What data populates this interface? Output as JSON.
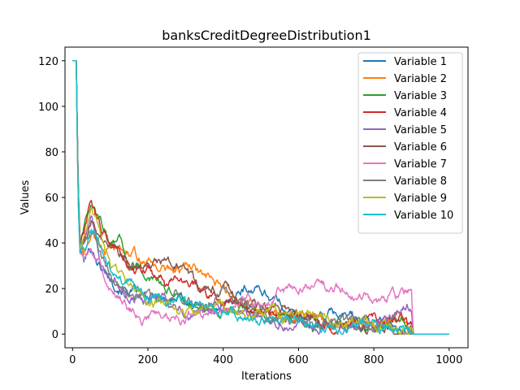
{
  "chart_data": {
    "type": "line",
    "title": "banksCreditDegreeDistribution1",
    "xlabel": "Iterations",
    "ylabel": "Values",
    "xlim": [
      -20,
      1050
    ],
    "ylim": [
      -6,
      126
    ],
    "xticks": [
      0,
      200,
      400,
      600,
      800,
      1000
    ],
    "yticks": [
      0,
      20,
      40,
      60,
      80,
      100,
      120
    ],
    "grid": false,
    "legend_position": "top-right",
    "series": [
      {
        "name": "Variable 1",
        "color": "#1f77b4",
        "x": [
          0,
          10,
          15,
          20,
          30,
          50,
          75,
          100,
          150,
          200,
          250,
          300,
          350,
          400,
          450,
          500,
          550,
          600,
          650,
          700,
          750,
          800,
          850,
          880,
          900,
          905,
          950,
          1000
        ],
        "y": [
          120,
          120,
          60,
          38,
          32,
          38,
          30,
          25,
          20,
          14,
          16,
          15,
          12,
          10,
          21,
          20,
          14,
          7,
          8,
          9,
          7,
          6,
          4,
          4,
          3,
          0,
          0,
          0
        ]
      },
      {
        "name": "Variable 2",
        "color": "#ff7f0e",
        "x": [
          0,
          10,
          15,
          20,
          30,
          50,
          75,
          100,
          150,
          200,
          250,
          300,
          350,
          400,
          450,
          500,
          550,
          600,
          650,
          700,
          750,
          800,
          850,
          880,
          900,
          905,
          950,
          1000
        ],
        "y": [
          120,
          120,
          65,
          42,
          34,
          44,
          40,
          36,
          35,
          32,
          28,
          30,
          24,
          18,
          14,
          10,
          8,
          6,
          5,
          4,
          4,
          3,
          6,
          8,
          5,
          0,
          0,
          0
        ]
      },
      {
        "name": "Variable 3",
        "color": "#2ca02c",
        "x": [
          0,
          10,
          15,
          20,
          30,
          50,
          75,
          100,
          125,
          150,
          200,
          250,
          300,
          350,
          400,
          450,
          500,
          550,
          600,
          650,
          700,
          750,
          800,
          850,
          880,
          900,
          905,
          950,
          1000
        ],
        "y": [
          120,
          120,
          62,
          40,
          50,
          56,
          48,
          42,
          44,
          30,
          24,
          20,
          16,
          12,
          10,
          9,
          8,
          7,
          6,
          5,
          4,
          4,
          3,
          3,
          4,
          3,
          0,
          0,
          0
        ]
      },
      {
        "name": "Variable 4",
        "color": "#d62728",
        "x": [
          0,
          10,
          15,
          20,
          30,
          50,
          75,
          100,
          150,
          200,
          250,
          300,
          350,
          400,
          450,
          500,
          550,
          600,
          650,
          700,
          750,
          800,
          850,
          880,
          900,
          905,
          950,
          1000
        ],
        "y": [
          120,
          120,
          64,
          40,
          44,
          56,
          46,
          40,
          32,
          28,
          22,
          24,
          18,
          15,
          12,
          10,
          9,
          8,
          7,
          6,
          5,
          4,
          4,
          5,
          3,
          0,
          0,
          0
        ]
      },
      {
        "name": "Variable 5",
        "color": "#9467bd",
        "x": [
          0,
          10,
          15,
          20,
          30,
          50,
          75,
          100,
          150,
          200,
          250,
          300,
          350,
          400,
          450,
          500,
          550,
          600,
          650,
          700,
          750,
          800,
          850,
          880,
          900,
          905,
          950,
          1000
        ],
        "y": [
          120,
          120,
          60,
          36,
          40,
          48,
          32,
          22,
          18,
          15,
          14,
          12,
          11,
          10,
          8,
          7,
          6,
          5,
          4,
          4,
          3,
          3,
          6,
          10,
          11,
          0,
          0,
          0
        ]
      },
      {
        "name": "Variable 6",
        "color": "#8c564b",
        "x": [
          0,
          10,
          15,
          20,
          30,
          50,
          75,
          100,
          150,
          200,
          250,
          300,
          350,
          400,
          450,
          500,
          550,
          600,
          650,
          700,
          750,
          800,
          850,
          880,
          900,
          905,
          950,
          1000
        ],
        "y": [
          120,
          120,
          66,
          42,
          40,
          50,
          42,
          36,
          30,
          30,
          32,
          26,
          18,
          22,
          16,
          12,
          10,
          8,
          6,
          5,
          4,
          4,
          3,
          3,
          2,
          0,
          0,
          0
        ]
      },
      {
        "name": "Variable 7",
        "color": "#e377c2",
        "x": [
          0,
          10,
          15,
          20,
          30,
          50,
          75,
          100,
          150,
          200,
          250,
          300,
          350,
          400,
          450,
          500,
          550,
          600,
          650,
          700,
          750,
          800,
          850,
          880,
          900,
          905,
          950,
          1000
        ],
        "y": [
          120,
          120,
          58,
          36,
          32,
          38,
          30,
          20,
          12,
          8,
          10,
          8,
          10,
          12,
          14,
          16,
          20,
          18,
          22,
          20,
          16,
          14,
          16,
          18,
          20,
          0,
          0,
          0
        ]
      },
      {
        "name": "Variable 8",
        "color": "#7f7f7f",
        "x": [
          0,
          10,
          15,
          20,
          30,
          50,
          75,
          100,
          150,
          200,
          250,
          300,
          350,
          400,
          450,
          500,
          550,
          600,
          650,
          700,
          750,
          800,
          850,
          880,
          900,
          905,
          950,
          1000
        ],
        "y": [
          120,
          120,
          62,
          40,
          38,
          46,
          36,
          26,
          16,
          14,
          18,
          16,
          14,
          20,
          12,
          10,
          8,
          6,
          5,
          4,
          4,
          3,
          3,
          4,
          3,
          0,
          0,
          0
        ]
      },
      {
        "name": "Variable 9",
        "color": "#bcbd22",
        "x": [
          0,
          10,
          15,
          20,
          30,
          50,
          75,
          100,
          150,
          200,
          250,
          300,
          350,
          400,
          450,
          500,
          550,
          600,
          650,
          700,
          750,
          800,
          850,
          880,
          900,
          905,
          950,
          1000
        ],
        "y": [
          120,
          120,
          60,
          38,
          42,
          54,
          40,
          28,
          20,
          16,
          12,
          10,
          12,
          14,
          10,
          8,
          7,
          8,
          6,
          5,
          6,
          4,
          3,
          3,
          2,
          0,
          0,
          0
        ]
      },
      {
        "name": "Variable 10",
        "color": "#17becf",
        "x": [
          0,
          10,
          15,
          20,
          30,
          50,
          75,
          100,
          150,
          200,
          250,
          300,
          350,
          400,
          450,
          500,
          550,
          600,
          650,
          700,
          750,
          800,
          850,
          880,
          900,
          905,
          950,
          1000
        ],
        "y": [
          120,
          120,
          58,
          36,
          36,
          44,
          38,
          30,
          22,
          18,
          14,
          12,
          14,
          10,
          8,
          6,
          5,
          4,
          3,
          2,
          2,
          3,
          2,
          2,
          2,
          0,
          0,
          0
        ]
      }
    ]
  }
}
